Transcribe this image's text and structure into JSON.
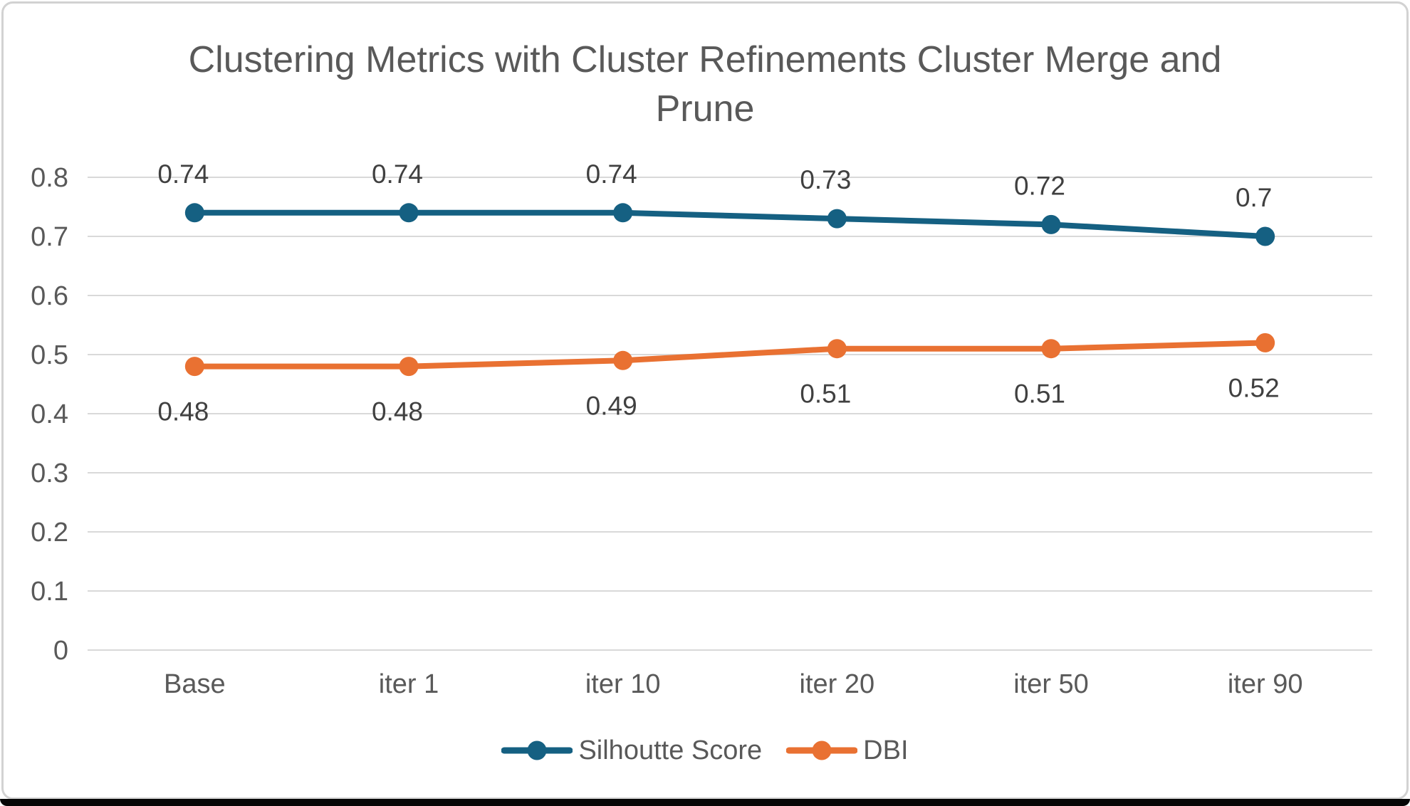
{
  "frame": {
    "card_border_color": "#d2d2d2",
    "bottom_bar_color": "#060606",
    "background": "#ffffff"
  },
  "chart_data": {
    "type": "line",
    "title": "Clustering Metrics with Cluster Refinements Cluster Merge and Prune",
    "categories": [
      "Base",
      "iter 1",
      "iter 10",
      "iter 20",
      "iter 50",
      "iter 90"
    ],
    "series": [
      {
        "name": "Silhoutte Score",
        "color": "#156082",
        "values": [
          0.74,
          0.74,
          0.74,
          0.73,
          0.72,
          0.7
        ],
        "labels": [
          "0.74",
          "0.74",
          "0.74",
          "0.73",
          "0.72",
          "0.7"
        ],
        "label_position": "above"
      },
      {
        "name": "DBI",
        "color": "#E97132",
        "values": [
          0.48,
          0.48,
          0.49,
          0.51,
          0.51,
          0.52
        ],
        "labels": [
          "0.48",
          "0.48",
          "0.49",
          "0.51",
          "0.51",
          "0.52"
        ],
        "label_position": "below"
      }
    ],
    "y_axis": {
      "min": 0,
      "max": 0.8,
      "step": 0.1,
      "tick_labels": [
        "0",
        "0.1",
        "0.2",
        "0.3",
        "0.4",
        "0.5",
        "0.6",
        "0.7",
        "0.8"
      ]
    },
    "x_axis": {
      "label": ""
    },
    "grid": true,
    "gridline_color": "#D9D9D9",
    "legend_position": "bottom",
    "axis_text_color": "#595959",
    "data_label_color": "#404040",
    "marker": "circle",
    "line_width": 8,
    "marker_radius": 13.5
  }
}
